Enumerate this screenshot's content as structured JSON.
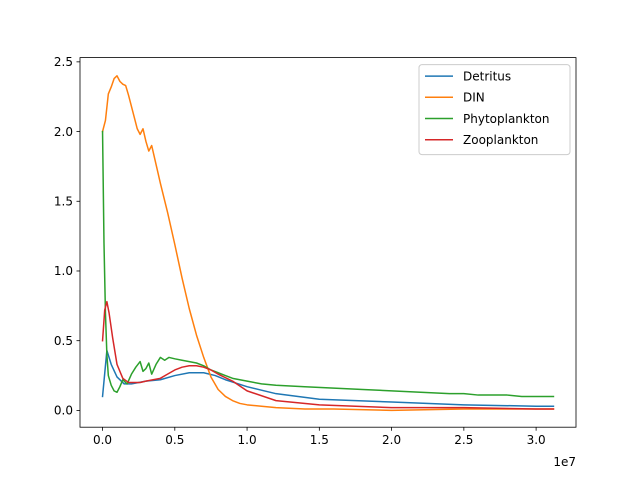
{
  "chart_data": {
    "type": "line",
    "title": "",
    "xlabel": "",
    "ylabel": "",
    "x_offset_text": "1e7",
    "x_scale": 10000000,
    "xlim": [
      -1560000,
      32760000
    ],
    "ylim": [
      -0.1205,
      2.5305
    ],
    "xticks": [
      0,
      5000000,
      10000000,
      15000000,
      20000000,
      25000000,
      30000000
    ],
    "xtick_labels": [
      "0.0",
      "0.5",
      "1.0",
      "1.5",
      "2.0",
      "2.5",
      "3.0"
    ],
    "yticks": [
      0.0,
      0.5,
      1.0,
      1.5,
      2.0,
      2.5
    ],
    "ytick_labels": [
      "0.0",
      "0.5",
      "1.0",
      "1.5",
      "2.0",
      "2.5"
    ],
    "grid": false,
    "legend": "top-right",
    "series": [
      {
        "name": "Detritus",
        "color": "#1f77b4",
        "x": [
          0,
          300000,
          600000,
          1000000,
          1500000,
          2000000,
          3000000,
          4000000,
          5000000,
          6000000,
          7000000,
          7800000,
          8500000,
          10000000,
          12000000,
          15000000,
          20000000,
          25000000,
          30000000,
          31200000
        ],
        "y": [
          0.1,
          0.43,
          0.33,
          0.24,
          0.19,
          0.19,
          0.21,
          0.22,
          0.25,
          0.27,
          0.27,
          0.25,
          0.22,
          0.17,
          0.12,
          0.08,
          0.06,
          0.04,
          0.03,
          0.03
        ]
      },
      {
        "name": "DIN",
        "color": "#ff7f0e",
        "x": [
          0,
          200000,
          400000,
          600000,
          800000,
          1000000,
          1200000,
          1400000,
          1600000,
          1800000,
          2000000,
          2200000,
          2400000,
          2600000,
          2800000,
          3000000,
          3200000,
          3400000,
          3600000,
          3800000,
          4000000,
          4500000,
          5000000,
          5500000,
          6000000,
          6500000,
          7000000,
          7500000,
          8000000,
          8500000,
          9000000,
          9500000,
          10000000,
          11000000,
          12000000,
          14000000,
          16000000,
          20000000,
          25000000,
          30000000,
          31200000
        ],
        "y": [
          2.0,
          2.08,
          2.27,
          2.32,
          2.38,
          2.4,
          2.36,
          2.34,
          2.33,
          2.26,
          2.18,
          2.1,
          2.02,
          1.98,
          2.02,
          1.93,
          1.86,
          1.9,
          1.81,
          1.72,
          1.63,
          1.42,
          1.19,
          0.95,
          0.73,
          0.54,
          0.38,
          0.24,
          0.15,
          0.1,
          0.07,
          0.05,
          0.04,
          0.03,
          0.02,
          0.01,
          0.01,
          0.0,
          0.01,
          0.01,
          0.01
        ]
      },
      {
        "name": "Phytoplankton",
        "color": "#2ca02c",
        "x": [
          0,
          100000,
          200000,
          300000,
          400000,
          600000,
          800000,
          1000000,
          1200000,
          1400000,
          1700000,
          2000000,
          2300000,
          2600000,
          2800000,
          3000000,
          3200000,
          3400000,
          3700000,
          4000000,
          4300000,
          4600000,
          5000000,
          5500000,
          6000000,
          6500000,
          7000000,
          7500000,
          8000000,
          8500000,
          9000000,
          10000000,
          11000000,
          12000000,
          14000000,
          16000000,
          18000000,
          20000000,
          22000000,
          24000000,
          25000000,
          26000000,
          27000000,
          28000000,
          29000000,
          30000000,
          31200000
        ],
        "y": [
          2.0,
          1.2,
          0.7,
          0.4,
          0.25,
          0.18,
          0.14,
          0.13,
          0.17,
          0.22,
          0.19,
          0.26,
          0.31,
          0.35,
          0.28,
          0.3,
          0.34,
          0.26,
          0.33,
          0.38,
          0.36,
          0.38,
          0.37,
          0.36,
          0.35,
          0.34,
          0.32,
          0.29,
          0.27,
          0.25,
          0.23,
          0.21,
          0.19,
          0.18,
          0.17,
          0.16,
          0.15,
          0.14,
          0.13,
          0.12,
          0.12,
          0.11,
          0.11,
          0.11,
          0.1,
          0.1,
          0.1
        ]
      },
      {
        "name": "Zooplankton",
        "color": "#d62728",
        "x": [
          0,
          150000,
          300000,
          450000,
          700000,
          1000000,
          1400000,
          1800000,
          2200000,
          2600000,
          3000000,
          3500000,
          4000000,
          4500000,
          5000000,
          5500000,
          6000000,
          6500000,
          7000000,
          7500000,
          8000000,
          9000000,
          10000000,
          12000000,
          15000000,
          20000000,
          25000000,
          30000000,
          31200000
        ],
        "y": [
          0.5,
          0.72,
          0.78,
          0.7,
          0.52,
          0.33,
          0.23,
          0.2,
          0.2,
          0.2,
          0.21,
          0.22,
          0.23,
          0.26,
          0.29,
          0.31,
          0.32,
          0.32,
          0.31,
          0.29,
          0.26,
          0.21,
          0.14,
          0.07,
          0.04,
          0.02,
          0.02,
          0.01,
          0.01
        ]
      }
    ]
  }
}
